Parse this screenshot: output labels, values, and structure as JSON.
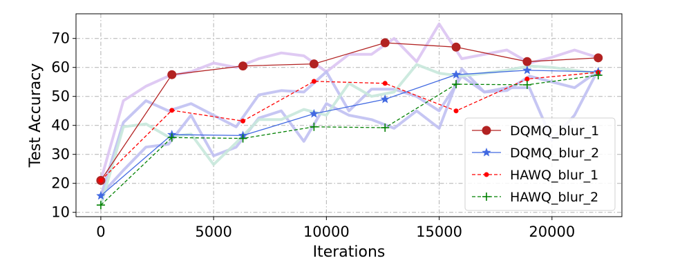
{
  "chart_data": {
    "type": "line",
    "title": "",
    "xlabel": "Iterations",
    "ylabel": "Test Accuracy",
    "xlim": [
      -1100,
      23100
    ],
    "ylim": [
      8.5,
      78.5
    ],
    "xticks": [
      0,
      5000,
      10000,
      15000,
      20000
    ],
    "yticks": [
      10,
      20,
      30,
      40,
      50,
      60,
      70
    ],
    "grid": true,
    "legend_position": "bottom-right",
    "series": [
      {
        "name": "DQMQ_blur_1",
        "color": "#b22222",
        "marker": "circle",
        "dash": "solid",
        "x": [
          0,
          3150,
          6300,
          9450,
          12600,
          15750,
          18900,
          22050
        ],
        "y": [
          21,
          57.5,
          60.5,
          61.2,
          68.5,
          67,
          62,
          63.3
        ]
      },
      {
        "name": "DQMQ_blur_2",
        "color": "#4169e1",
        "marker": "star",
        "dash": "solid",
        "x": [
          0,
          3150,
          6300,
          9450,
          12600,
          15750,
          18900,
          22050
        ],
        "y": [
          15.7,
          36.8,
          36.5,
          44,
          49,
          57.5,
          59,
          58.5
        ]
      },
      {
        "name": "HAWQ_blur_1",
        "color": "#ff0000",
        "marker": "dot",
        "dash": "dashed",
        "x": [
          0,
          3150,
          6300,
          9450,
          12600,
          15750,
          18900,
          22050
        ],
        "y": [
          21,
          45.2,
          41.5,
          55.2,
          54.5,
          45,
          56,
          58.3
        ]
      },
      {
        "name": "HAWQ_blur_2",
        "color": "#008000",
        "marker": "plus",
        "dash": "dashed",
        "x": [
          0,
          3150,
          6300,
          9450,
          12600,
          15750,
          18900,
          22050
        ],
        "y": [
          12.5,
          35.8,
          35.5,
          39.5,
          39.2,
          54.2,
          54,
          57.3
        ]
      }
    ],
    "background_traces": [
      {
        "color": "#dcc4f2",
        "x": [
          0,
          1000,
          2000,
          3000,
          4000,
          5000,
          6000,
          7000,
          8000,
          9000,
          10000,
          11000,
          12000,
          13000,
          14000,
          15000,
          16000,
          17000,
          18000,
          19000,
          20000,
          21000,
          22000
        ],
        "y": [
          21,
          48.5,
          53.5,
          57,
          58.5,
          61.5,
          60,
          63,
          65,
          64,
          58.5,
          64.5,
          64.5,
          70,
          62,
          75,
          63,
          64.5,
          66,
          61.5,
          63.5,
          66,
          63.5
        ]
      },
      {
        "color": "#c0c0f2",
        "x": [
          0,
          1000,
          2000,
          3000,
          4000,
          5000,
          6000,
          7000,
          8000,
          9000,
          10000,
          11000,
          12000,
          13000,
          14000,
          15000,
          16000,
          17000,
          18000,
          19000,
          20000,
          21000,
          22000
        ],
        "y": [
          15.5,
          41,
          48.5,
          45,
          47.5,
          43.5,
          39.5,
          50.5,
          52,
          51.5,
          58.5,
          45,
          52.5,
          52.5,
          50,
          45,
          57,
          51.5,
          52,
          57,
          55,
          53,
          58.5
        ]
      },
      {
        "color": "#c0c0f2",
        "x": [
          0,
          1000,
          2000,
          3000,
          4000,
          5000,
          6000,
          7000,
          8000,
          9000,
          10000,
          11000,
          12000,
          13000,
          14000,
          15000,
          16000,
          17000,
          18000,
          19000,
          20000,
          21000,
          22000
        ],
        "y": [
          16,
          24.5,
          32.5,
          33.5,
          43.5,
          29.5,
          32.5,
          42.5,
          45,
          34.5,
          47.5,
          43.5,
          42,
          39,
          45,
          39,
          59.5,
          51.5,
          53,
          53,
          35,
          43.5,
          58.5
        ]
      },
      {
        "color": "#c8e8dc",
        "x": [
          0,
          1000,
          2000,
          3000,
          4000,
          5000,
          6000,
          7000,
          8000,
          9000,
          10000,
          11000,
          12000,
          13000,
          14000,
          15000,
          16000,
          17000,
          18000,
          19000,
          20000,
          21000,
          22000
        ],
        "y": [
          12.5,
          39.5,
          40.5,
          36,
          37,
          26.5,
          34,
          42,
          42,
          45.5,
          43.5,
          54.5,
          50,
          51.5,
          61,
          58,
          57,
          58,
          59,
          60.5,
          60,
          59,
          58
        ]
      }
    ]
  }
}
